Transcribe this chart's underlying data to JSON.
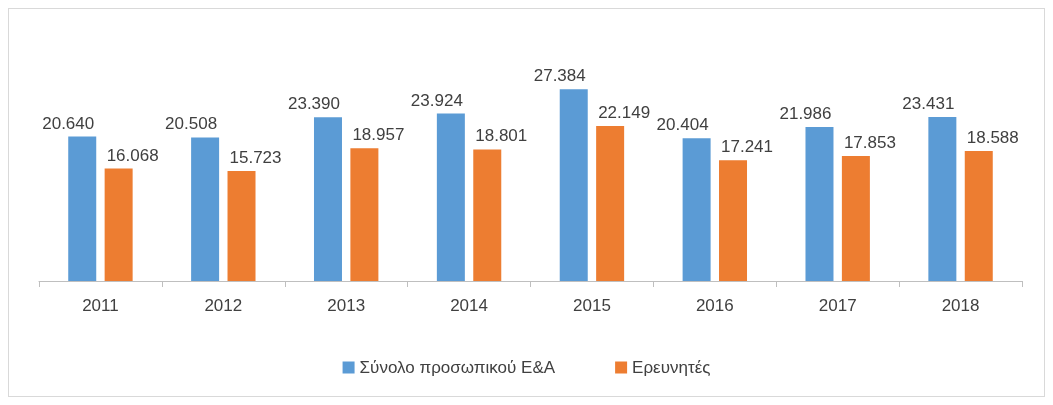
{
  "chart_data": {
    "type": "bar",
    "categories": [
      "2011",
      "2012",
      "2013",
      "2014",
      "2015",
      "2016",
      "2017",
      "2018"
    ],
    "series": [
      {
        "name": "Σύνολο προσωπικού Ε&Α",
        "color": "#5b9bd5",
        "values": [
          20640,
          20508,
          23390,
          23924,
          27384,
          20404,
          21986,
          23431
        ],
        "value_labels": [
          "20.640",
          "20.508",
          "23.390",
          "23.924",
          "27.384",
          "20.404",
          "21.986",
          "23.431"
        ]
      },
      {
        "name": "Ερευνητές",
        "color": "#ed7d31",
        "values": [
          16068,
          15723,
          18957,
          18801,
          22149,
          17241,
          17853,
          18588
        ],
        "value_labels": [
          "16.068",
          "15.723",
          "18.957",
          "18.801",
          "22.149",
          "17.241",
          "17.853",
          "18.588"
        ]
      }
    ],
    "legend": "bottom",
    "grid": false
  }
}
